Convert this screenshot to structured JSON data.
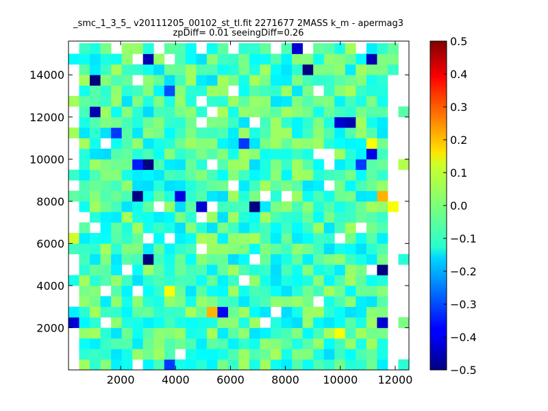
{
  "chart_data": {
    "type": "heatmap",
    "title_lines": [
      "_smc_1_3_5_ v20111205_00102_st_tl.fit 2271677 2MASS k_m - apermag3",
      "zpDiff= 0.01 seeingDiff=0.26"
    ],
    "xlabel": "",
    "ylabel": "",
    "xlim": [
      100,
      12500
    ],
    "ylim": [
      0,
      15600
    ],
    "x_ticks": [
      2000,
      4000,
      6000,
      8000,
      10000,
      12000
    ],
    "y_ticks": [
      2000,
      4000,
      6000,
      8000,
      10000,
      12000,
      14000
    ],
    "colorbar": {
      "colormap": "jet",
      "range": [
        -0.5,
        0.5
      ],
      "ticks": [
        -0.5,
        -0.4,
        -0.3,
        -0.2,
        -0.1,
        0.0,
        0.1,
        0.2,
        0.3,
        0.4,
        0.5
      ],
      "tick_labels": [
        "−0.5",
        "−0.4",
        "−0.3",
        "−0.2",
        "−0.1",
        "0.0",
        "0.1",
        "0.2",
        "0.3",
        "0.4",
        "0.5"
      ]
    },
    "grid": {
      "x0": 100,
      "y0": 0,
      "cell_width": 387.5,
      "cell_height": 500,
      "columns": 32,
      "rows": 31,
      "background": -0.06,
      "empty_value": null
    },
    "notable_cells": [
      {
        "x": 1000,
        "y": 13750,
        "value": -0.5
      },
      {
        "x": 3000,
        "y": 14750,
        "value": -0.45
      },
      {
        "x": 8800,
        "y": 14250,
        "value": -0.5
      },
      {
        "x": 11200,
        "y": 14750,
        "value": -0.45
      },
      {
        "x": 8400,
        "y": 15250,
        "value": -0.42
      },
      {
        "x": 1000,
        "y": 12250,
        "value": -0.45
      },
      {
        "x": 3600,
        "y": 13250,
        "value": -0.3
      },
      {
        "x": 9900,
        "y": 11750,
        "value": -0.42
      },
      {
        "x": 10300,
        "y": 11750,
        "value": -0.45
      },
      {
        "x": 1800,
        "y": 11250,
        "value": -0.32
      },
      {
        "x": 6500,
        "y": 10750,
        "value": -0.32
      },
      {
        "x": 11100,
        "y": 10250,
        "value": -0.4
      },
      {
        "x": 2600,
        "y": 9750,
        "value": -0.35
      },
      {
        "x": 3000,
        "y": 9750,
        "value": -0.5
      },
      {
        "x": 10700,
        "y": 9750,
        "value": -0.32
      },
      {
        "x": 2700,
        "y": 8250,
        "value": -0.5
      },
      {
        "x": 4300,
        "y": 8250,
        "value": -0.4
      },
      {
        "x": 5000,
        "y": 7750,
        "value": -0.42
      },
      {
        "x": 6900,
        "y": 7750,
        "value": -0.5
      },
      {
        "x": 3000,
        "y": 5250,
        "value": -0.5
      },
      {
        "x": 11500,
        "y": 4750,
        "value": -0.5
      },
      {
        "x": 5400,
        "y": 2750,
        "value": 0.2
      },
      {
        "x": 5800,
        "y": 2750,
        "value": -0.38
      },
      {
        "x": 11500,
        "y": 8250,
        "value": 0.2
      },
      {
        "x": 11900,
        "y": 7750,
        "value": 0.12
      },
      {
        "x": 11500,
        "y": 2250,
        "value": -0.42
      },
      {
        "x": 300,
        "y": 2250,
        "value": -0.42
      },
      {
        "x": 3700,
        "y": 250,
        "value": -0.32
      },
      {
        "x": 11100,
        "y": 10750,
        "value": 0.12
      },
      {
        "x": 300,
        "y": 6250,
        "value": 0.08
      },
      {
        "x": 3600,
        "y": 3750,
        "value": 0.12
      },
      {
        "x": 10000,
        "y": 1750,
        "value": 0.12
      },
      {
        "x": 12300,
        "y": 9750,
        "value": 0.05
      }
    ]
  }
}
